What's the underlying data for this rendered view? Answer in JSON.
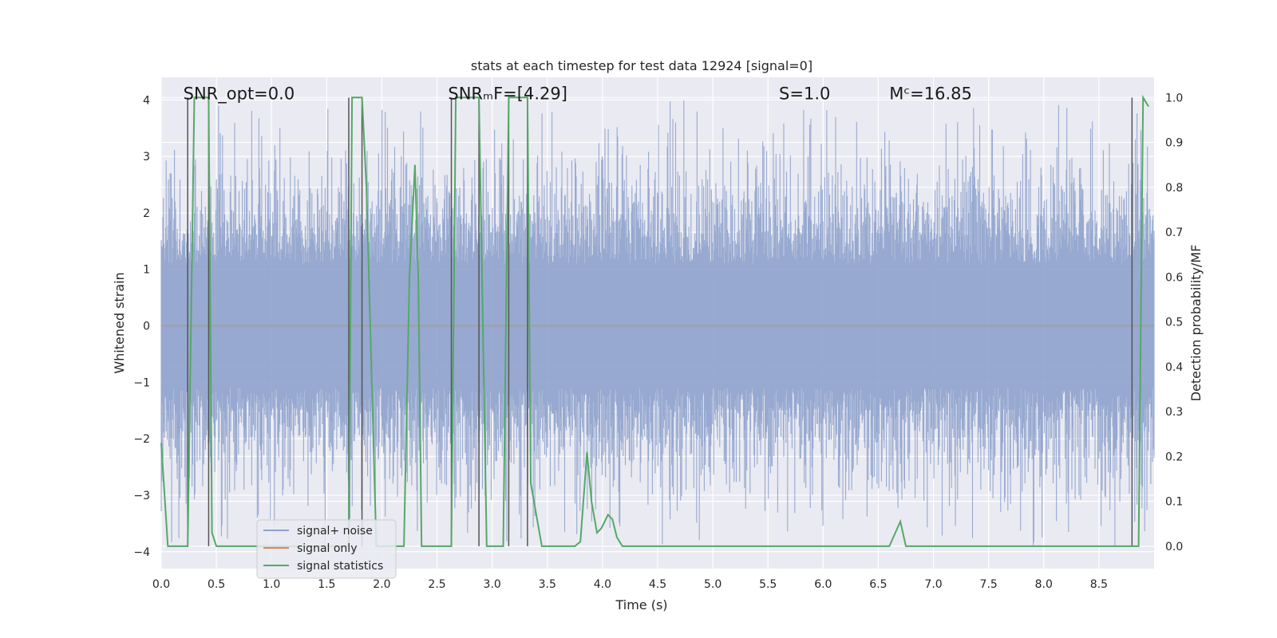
{
  "chart_data": {
    "type": "line",
    "title": "stats at each timestep for test data 12924 [signal=0]",
    "xlabel": "Time (s)",
    "ylabel": "Whitened strain",
    "y2label": "Detection probability/MF",
    "xlim": [
      0.0,
      9.0
    ],
    "ylim": [
      -4.3,
      4.4
    ],
    "y2lim": [
      -0.05,
      1.045
    ],
    "xticks": [
      "0.0",
      "0.5",
      "1.0",
      "1.5",
      "2.0",
      "2.5",
      "3.0",
      "3.5",
      "4.0",
      "4.5",
      "5.0",
      "5.5",
      "6.0",
      "6.5",
      "7.0",
      "7.5",
      "8.0",
      "8.5"
    ],
    "yticks": [
      "4",
      "3",
      "2",
      "1",
      "0",
      "−1",
      "−2",
      "−3",
      "−4"
    ],
    "y2ticks": [
      "1.0",
      "0.9",
      "0.8",
      "0.7",
      "0.6",
      "0.5",
      "0.4",
      "0.3",
      "0.2",
      "0.1",
      "0.0"
    ],
    "grid": true,
    "legend_position": "lower-left",
    "annotations": [
      {
        "text": "SNR_opt=0.0",
        "x": 0.2,
        "y": 4.0
      },
      {
        "text": "SNRₘF=[4.29]",
        "x": 2.6,
        "y": 4.0
      },
      {
        "text": "S=1.0",
        "x": 5.6,
        "y": 4.0
      },
      {
        "text": "Mᶜ=16.85",
        "x": 6.6,
        "y": 4.0
      }
    ],
    "series": [
      {
        "name": "signal+ noise",
        "color": "#8ea2cc",
        "amplitude_range": [
          -3.9,
          4.0
        ],
        "n_samples": 1800
      },
      {
        "name": "signal only",
        "color": "#dd8452",
        "x": [
          0.0,
          9.0
        ],
        "y": [
          0.0,
          0.0
        ]
      },
      {
        "name": "signal statistics",
        "color": "#55a868",
        "axis": "right",
        "x": [
          0.0,
          0.06,
          0.1,
          0.15,
          0.2,
          0.24,
          0.3,
          0.35,
          0.43,
          0.46,
          0.5,
          0.56,
          0.6,
          1.0,
          1.5,
          1.7,
          1.73,
          1.76,
          1.82,
          1.86,
          1.95,
          2.2,
          2.25,
          2.3,
          2.33,
          2.36,
          2.42,
          2.6,
          2.63,
          2.67,
          2.8,
          2.88,
          2.95,
          3.0,
          3.1,
          3.15,
          3.2,
          3.32,
          3.35,
          3.45,
          3.5,
          3.6,
          3.75,
          3.8,
          3.86,
          3.9,
          3.95,
          3.99,
          4.05,
          4.09,
          4.13,
          4.18,
          4.22,
          4.27,
          4.3,
          4.5,
          5.0,
          5.5,
          6.0,
          6.3,
          6.4,
          6.5,
          6.6,
          6.7,
          6.75,
          6.8,
          6.85,
          7.0,
          7.5,
          8.0,
          8.5,
          8.75,
          8.8,
          8.86,
          8.9,
          8.95
        ],
        "y": [
          0.23,
          0.0,
          0.0,
          0.0,
          0.0,
          0.0,
          1.0,
          1.0,
          1.0,
          0.03,
          0.0,
          0.0,
          0.0,
          0.0,
          0.0,
          0.0,
          1.0,
          1.0,
          1.0,
          0.8,
          0.0,
          0.0,
          0.6,
          0.85,
          0.6,
          0.0,
          0.0,
          0.0,
          0.0,
          1.0,
          1.0,
          1.0,
          0.0,
          0.0,
          0.0,
          1.0,
          1.0,
          1.0,
          0.14,
          0.0,
          0.0,
          0.0,
          0.0,
          0.01,
          0.21,
          0.1,
          0.03,
          0.04,
          0.07,
          0.06,
          0.02,
          0.0,
          0.0,
          0.0,
          0.0,
          0.0,
          0.0,
          0.0,
          0.0,
          0.0,
          0.0,
          0.0,
          0.0,
          0.055,
          0.0,
          0.0,
          0.0,
          0.0,
          0.0,
          0.0,
          0.0,
          0.0,
          0.0,
          0.0,
          1.0,
          0.98
        ]
      },
      {
        "name": "detection markers",
        "color": "#555555",
        "x": [
          0.24,
          0.43,
          1.7,
          1.82,
          2.63,
          2.88,
          3.15,
          3.32,
          8.8
        ]
      }
    ]
  }
}
